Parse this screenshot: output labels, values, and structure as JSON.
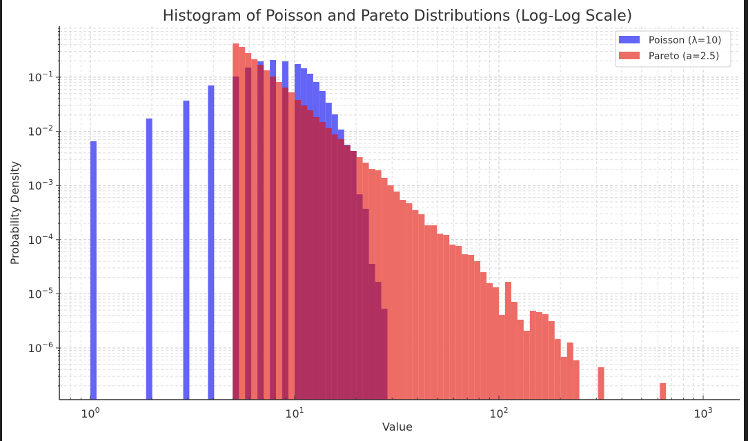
{
  "chart_data": {
    "type": "bar",
    "title": "Histogram of Poisson and Pareto Distributions (Log-Log Scale)",
    "xlabel": "Value",
    "ylabel": "Probability Density",
    "xscale": "log",
    "yscale": "log",
    "xlim": [
      0.705,
      1510
    ],
    "ylim": [
      1.11e-07,
      0.875
    ],
    "grid": true,
    "legend_placement": "top-right",
    "x_ticks": [
      {
        "value": 1,
        "base": "10",
        "exp": "0"
      },
      {
        "value": 10,
        "base": "10",
        "exp": "1"
      },
      {
        "value": 100,
        "base": "10",
        "exp": "2"
      },
      {
        "value": 1000,
        "base": "10",
        "exp": "3"
      }
    ],
    "y_ticks": [
      {
        "value": 0.1,
        "base": "10",
        "exp": "−1"
      },
      {
        "value": 0.01,
        "base": "10",
        "exp": "−2"
      },
      {
        "value": 0.001,
        "base": "10",
        "exp": "−3"
      },
      {
        "value": 0.0001,
        "base": "10",
        "exp": "−4"
      },
      {
        "value": 1e-05,
        "base": "10",
        "exp": "−5"
      },
      {
        "value": 1e-06,
        "base": "10",
        "exp": "−6"
      }
    ],
    "colors": {
      "poisson": "#6464f6",
      "pareto": "#ed6c66",
      "overlap": "#b03060"
    },
    "series": [
      {
        "name": "Poisson (λ=10)",
        "key": "poisson",
        "bars": [
          [
            1.0,
            1.072,
            0.00656
          ],
          [
            1.874,
            2.009,
            0.0173
          ],
          [
            2.848,
            3.053,
            0.0369
          ],
          [
            3.765,
            4.037,
            0.0703
          ],
          [
            4.977,
            5.337,
            0.103
          ],
          [
            5.722,
            6.136,
            0.151
          ],
          [
            6.579,
            7.055,
            0.196
          ],
          [
            7.565,
            8.111,
            0.208
          ],
          [
            8.697,
            9.326,
            0.196
          ],
          [
            10.0,
            10.72,
            0.175
          ],
          [
            10.72,
            11.5,
            0.146
          ],
          [
            11.5,
            12.33,
            0.116
          ],
          [
            12.33,
            13.22,
            0.0815
          ],
          [
            13.22,
            14.17,
            0.0557
          ],
          [
            14.17,
            15.2,
            0.0338
          ],
          [
            15.2,
            16.3,
            0.0206
          ],
          [
            16.3,
            17.48,
            0.0108
          ],
          [
            17.48,
            18.74,
            0.00566
          ],
          [
            18.74,
            20.09,
            0.00435
          ],
          [
            20.09,
            21.54,
            0.000687
          ],
          [
            21.54,
            23.1,
            0.000372
          ],
          [
            23.1,
            24.77,
            3.56e-05
          ],
          [
            24.77,
            26.56,
            1.66e-05
          ],
          [
            26.56,
            28.48,
            5.31e-06
          ]
        ]
      },
      {
        "name": "Pareto (a=2.5)",
        "key": "pareto",
        "bars": [
          [
            4.977,
            5.337,
            0.42
          ],
          [
            5.337,
            5.722,
            0.363
          ],
          [
            5.722,
            6.136,
            0.279
          ],
          [
            6.136,
            6.579,
            0.214
          ],
          [
            6.579,
            7.055,
            0.169
          ],
          [
            7.055,
            7.565,
            0.134
          ],
          [
            7.565,
            8.111,
            0.103
          ],
          [
            8.111,
            8.697,
            0.0815
          ],
          [
            8.697,
            9.326,
            0.0644
          ],
          [
            9.326,
            10.0,
            0.0525
          ],
          [
            10.0,
            10.72,
            0.038
          ],
          [
            10.72,
            11.5,
            0.0301
          ],
          [
            11.5,
            12.33,
            0.0245
          ],
          [
            12.33,
            13.22,
            0.0183
          ],
          [
            13.22,
            14.17,
            0.0149
          ],
          [
            14.17,
            15.2,
            0.0115
          ],
          [
            15.2,
            16.3,
            0.00879
          ],
          [
            16.3,
            17.48,
            0.00716
          ],
          [
            17.48,
            18.74,
            0.0055
          ],
          [
            18.74,
            20.09,
            0.00435
          ],
          [
            20.09,
            21.54,
            0.00334
          ],
          [
            21.54,
            23.1,
            0.00264
          ],
          [
            23.1,
            24.77,
            0.00203
          ],
          [
            24.77,
            26.56,
            0.00191
          ],
          [
            26.56,
            28.48,
            0.00139
          ],
          [
            28.48,
            30.54,
            0.00101
          ],
          [
            30.54,
            32.75,
            0.000773
          ],
          [
            32.75,
            35.11,
            0.000543
          ],
          [
            35.11,
            37.65,
            0.00047
          ],
          [
            37.65,
            40.37,
            0.000351
          ],
          [
            40.37,
            43.29,
            0.000294
          ],
          [
            43.29,
            46.42,
            0.000184
          ],
          [
            46.42,
            49.77,
            0.000184
          ],
          [
            49.77,
            53.37,
            0.000129
          ],
          [
            53.37,
            57.22,
            0.000122
          ],
          [
            57.22,
            61.36,
            8.1e-05
          ],
          [
            61.36,
            65.79,
            7.63e-05
          ],
          [
            65.79,
            70.55,
            5.37e-05
          ],
          [
            70.55,
            75.65,
            5.22e-05
          ],
          [
            75.65,
            81.11,
            4.01e-05
          ],
          [
            81.11,
            86.97,
            2.51e-05
          ],
          [
            86.97,
            93.26,
            1.57e-05
          ],
          [
            93.26,
            100.0,
            1.32e-05
          ],
          [
            100.0,
            107.2,
            4.08e-06
          ],
          [
            107.2,
            115.0,
            1.66e-05
          ],
          [
            115.0,
            123.3,
            7.11e-06
          ],
          [
            123.3,
            132.2,
            3.33e-06
          ],
          [
            132.2,
            141.7,
            2.08e-06
          ],
          [
            141.7,
            152.0,
            4.86e-06
          ],
          [
            152.0,
            163.0,
            4.59e-06
          ],
          [
            163.0,
            174.8,
            4.2e-06
          ],
          [
            174.8,
            187.4,
            3.13e-06
          ],
          [
            187.4,
            200.9,
            1.46e-06
          ],
          [
            200.9,
            215.4,
            6.84e-07
          ],
          [
            215.4,
            231.0,
            1.26e-06
          ],
          [
            231.0,
            247.7,
            5.9e-07
          ],
          [
            305.4,
            327.5,
            4.41e-07
          ],
          [
            613.6,
            657.9,
            2.24e-07
          ]
        ]
      }
    ]
  }
}
